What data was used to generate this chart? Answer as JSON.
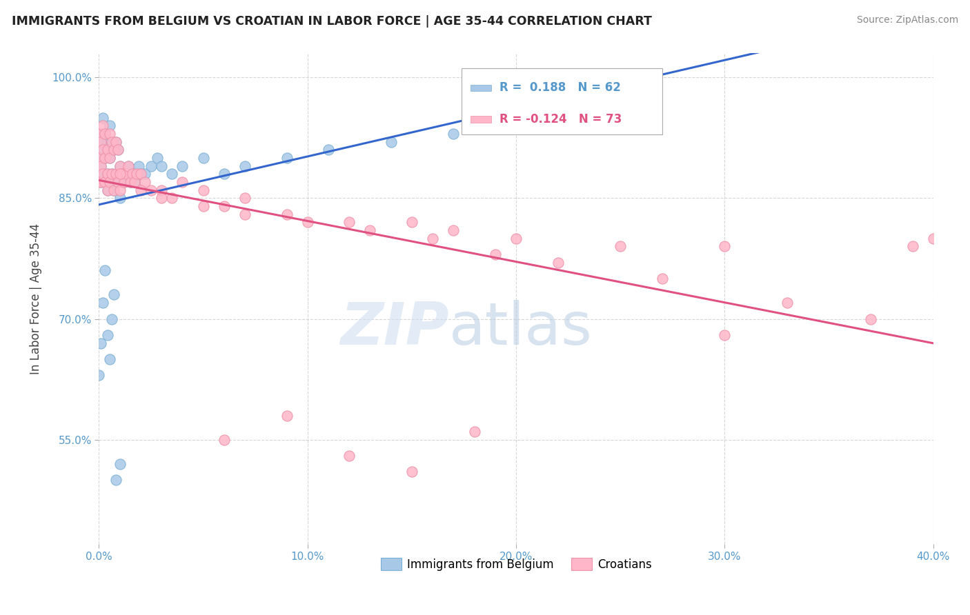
{
  "title": "IMMIGRANTS FROM BELGIUM VS CROATIAN IN LABOR FORCE | AGE 35-44 CORRELATION CHART",
  "source": "Source: ZipAtlas.com",
  "ylabel": "In Labor Force | Age 35-44",
  "xlim": [
    0.0,
    0.4
  ],
  "ylim": [
    0.42,
    1.03
  ],
  "xticks": [
    0.0,
    0.1,
    0.2,
    0.3,
    0.4
  ],
  "xtick_labels": [
    "0.0%",
    "10.0%",
    "20.0%",
    "30.0%",
    "40.0%"
  ],
  "yticks": [
    0.55,
    0.7,
    0.85,
    1.0
  ],
  "ytick_labels": [
    "55.0%",
    "70.0%",
    "85.0%",
    "100.0%"
  ],
  "belgium_color": "#a8c8e8",
  "belgium_edge": "#7ab0d4",
  "croatian_color": "#ffb6c8",
  "croatian_edge": "#f090a8",
  "trend_blue": "#3366cc",
  "trend_pink": "#e05080",
  "belgium_R": 0.188,
  "belgium_N": 62,
  "croatian_R": -0.124,
  "croatian_N": 73,
  "watermark_zip": "ZIP",
  "watermark_atlas": "atlas",
  "legend_label_belgium": "Immigrants from Belgium",
  "legend_label_croatian": "Croatians",
  "tick_color": "#5599cc",
  "grid_color": "#cccccc",
  "belgium_x": [
    0.0,
    0.0,
    0.0,
    0.001,
    0.001,
    0.001,
    0.002,
    0.002,
    0.002,
    0.003,
    0.003,
    0.003,
    0.004,
    0.004,
    0.004,
    0.005,
    0.005,
    0.005,
    0.006,
    0.006,
    0.007,
    0.007,
    0.008,
    0.008,
    0.009,
    0.009,
    0.01,
    0.01,
    0.011,
    0.012,
    0.013,
    0.014,
    0.015,
    0.016,
    0.017,
    0.018,
    0.019,
    0.02,
    0.022,
    0.025,
    0.028,
    0.03,
    0.035,
    0.04,
    0.05,
    0.06,
    0.07,
    0.09,
    0.11,
    0.14,
    0.17,
    0.2,
    0.0,
    0.001,
    0.002,
    0.003,
    0.004,
    0.005,
    0.006,
    0.007,
    0.008,
    0.01
  ],
  "belgium_y": [
    0.88,
    0.9,
    0.92,
    0.87,
    0.89,
    0.93,
    0.88,
    0.91,
    0.95,
    0.87,
    0.9,
    0.93,
    0.86,
    0.88,
    0.92,
    0.87,
    0.9,
    0.94,
    0.88,
    0.92,
    0.86,
    0.91,
    0.88,
    0.92,
    0.87,
    0.91,
    0.85,
    0.89,
    0.88,
    0.87,
    0.88,
    0.89,
    0.87,
    0.88,
    0.87,
    0.88,
    0.89,
    0.88,
    0.88,
    0.89,
    0.9,
    0.89,
    0.88,
    0.89,
    0.9,
    0.88,
    0.89,
    0.9,
    0.91,
    0.92,
    0.93,
    0.94,
    0.63,
    0.67,
    0.72,
    0.76,
    0.68,
    0.65,
    0.7,
    0.73,
    0.5,
    0.52
  ],
  "croatian_x": [
    0.0,
    0.0,
    0.0,
    0.001,
    0.001,
    0.001,
    0.002,
    0.002,
    0.002,
    0.003,
    0.003,
    0.003,
    0.004,
    0.004,
    0.004,
    0.005,
    0.005,
    0.005,
    0.006,
    0.006,
    0.007,
    0.007,
    0.008,
    0.008,
    0.009,
    0.009,
    0.01,
    0.01,
    0.011,
    0.012,
    0.013,
    0.014,
    0.015,
    0.016,
    0.017,
    0.018,
    0.02,
    0.022,
    0.025,
    0.03,
    0.035,
    0.04,
    0.05,
    0.06,
    0.07,
    0.09,
    0.12,
    0.15,
    0.17,
    0.2,
    0.25,
    0.3,
    0.01,
    0.02,
    0.03,
    0.05,
    0.07,
    0.1,
    0.13,
    0.16,
    0.19,
    0.22,
    0.27,
    0.33,
    0.37,
    0.39,
    0.06,
    0.09,
    0.12,
    0.15,
    0.18,
    0.3,
    0.4
  ],
  "croatian_y": [
    0.87,
    0.9,
    0.93,
    0.87,
    0.89,
    0.92,
    0.88,
    0.91,
    0.94,
    0.87,
    0.9,
    0.93,
    0.86,
    0.88,
    0.91,
    0.87,
    0.9,
    0.93,
    0.88,
    0.92,
    0.86,
    0.91,
    0.88,
    0.92,
    0.87,
    0.91,
    0.86,
    0.89,
    0.88,
    0.87,
    0.88,
    0.89,
    0.87,
    0.88,
    0.87,
    0.88,
    0.88,
    0.87,
    0.86,
    0.86,
    0.85,
    0.87,
    0.86,
    0.84,
    0.85,
    0.83,
    0.82,
    0.82,
    0.81,
    0.8,
    0.79,
    0.79,
    0.88,
    0.86,
    0.85,
    0.84,
    0.83,
    0.82,
    0.81,
    0.8,
    0.78,
    0.77,
    0.75,
    0.72,
    0.7,
    0.79,
    0.55,
    0.58,
    0.53,
    0.51,
    0.56,
    0.68,
    0.8
  ]
}
